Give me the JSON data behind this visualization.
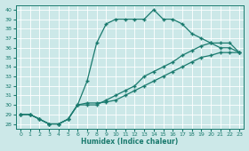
{
  "xlabel": "Humidex (Indice chaleur)",
  "bg_color": "#cce8e8",
  "line_color": "#1a7a6e",
  "grid_color": "#b0d0d0",
  "xlim": [
    -0.5,
    23.5
  ],
  "ylim": [
    27.5,
    40.5
  ],
  "xticks": [
    0,
    1,
    2,
    3,
    4,
    5,
    6,
    7,
    8,
    9,
    10,
    11,
    12,
    13,
    14,
    15,
    16,
    17,
    18,
    19,
    20,
    21,
    22,
    23
  ],
  "yticks": [
    28,
    29,
    30,
    31,
    32,
    33,
    34,
    35,
    36,
    37,
    38,
    39,
    40
  ],
  "line1_x": [
    0,
    1,
    2,
    3,
    4,
    5,
    6,
    7,
    8,
    9,
    10,
    11,
    12,
    13,
    14,
    15,
    16,
    17,
    18,
    19,
    20,
    21,
    22,
    23
  ],
  "line1_y": [
    29.0,
    29.0,
    28.5,
    28.0,
    28.0,
    28.5,
    30.0,
    32.5,
    36.5,
    38.5,
    39.0,
    39.0,
    39.0,
    39.0,
    40.0,
    39.0,
    39.0,
    38.5,
    37.5,
    37.0,
    36.5,
    36.0,
    36.0,
    35.5
  ],
  "line2_x": [
    0,
    1,
    2,
    3,
    4,
    5,
    6,
    7,
    8,
    9,
    10,
    11,
    12,
    13,
    14,
    15,
    16,
    17,
    18,
    19,
    20,
    21,
    22,
    23
  ],
  "line2_y": [
    29.0,
    29.0,
    28.5,
    28.0,
    28.0,
    28.5,
    30.0,
    30.2,
    30.2,
    30.3,
    30.5,
    31.0,
    31.5,
    32.0,
    32.5,
    33.0,
    33.5,
    34.0,
    34.5,
    35.0,
    35.2,
    35.5,
    35.5,
    35.5
  ],
  "line3_x": [
    0,
    1,
    2,
    3,
    4,
    5,
    6,
    7,
    8,
    9,
    10,
    11,
    12,
    13,
    14,
    15,
    16,
    17,
    18,
    19,
    20,
    21,
    22,
    23
  ],
  "line3_y": [
    29.0,
    29.0,
    28.5,
    28.0,
    28.0,
    28.5,
    30.0,
    30.0,
    30.0,
    30.5,
    31.0,
    31.5,
    32.0,
    33.0,
    33.5,
    34.0,
    34.5,
    35.2,
    35.7,
    36.2,
    36.5,
    36.5,
    36.5,
    35.5
  ],
  "markersize": 2.0,
  "linewidth": 0.9
}
